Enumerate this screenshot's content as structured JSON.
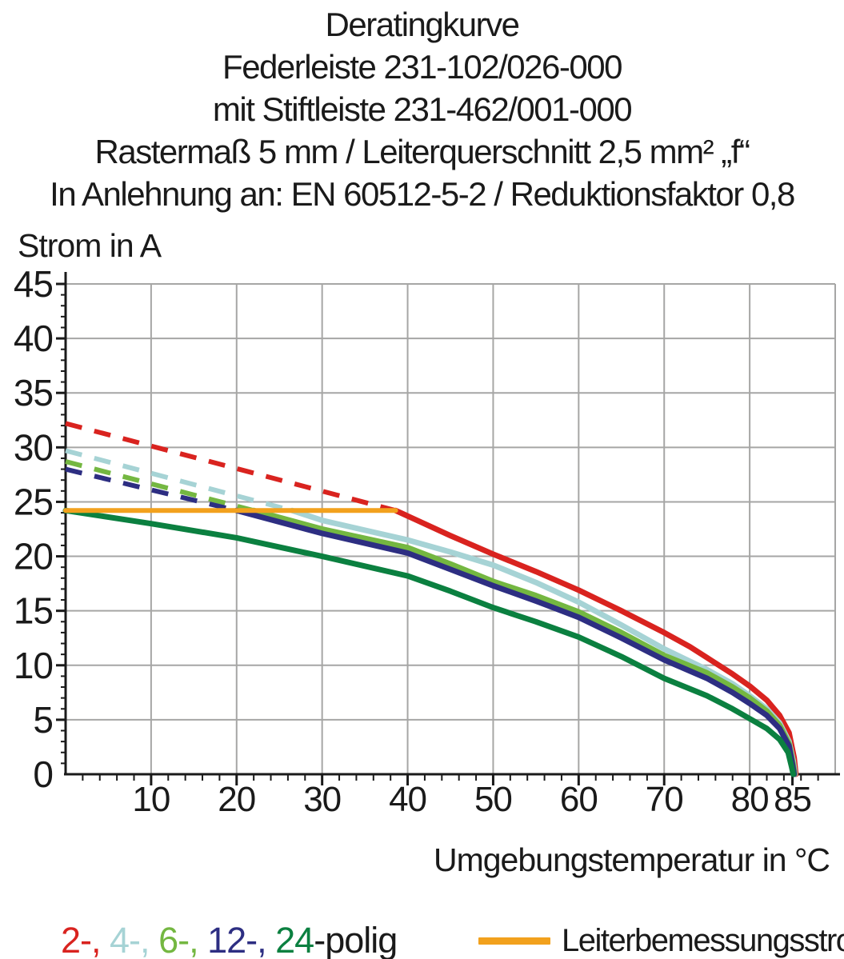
{
  "title_lines": [
    "Deratingkurve",
    "Federleiste 231-102/026-000",
    "mit Stiftleiste 231-462/001-000",
    "Rastermaß 5 mm / Leiterquerschnitt 2,5 mm² „f“",
    "In Anlehnung an: EN 60512-5-2 / Reduktionsfaktor 0,8"
  ],
  "y_axis_label": "Strom in A",
  "x_axis_label": "Umgebungstemperatur in °C",
  "legend": {
    "poles_parts": [
      {
        "text": "2-, ",
        "color": "#d9231f"
      },
      {
        "text": "4-, ",
        "color": "#a6d3d5"
      },
      {
        "text": "6-, ",
        "color": "#74b741"
      },
      {
        "text": "12-, ",
        "color": "#2d2e82"
      },
      {
        "text": "24",
        "color": "#0b8040"
      },
      {
        "text": "-polig",
        "color": "#1a1a1a"
      }
    ],
    "rated_current_label": "Leiterbemessungsstrom"
  },
  "colors": {
    "red_2pole": "#d9231f",
    "cyan_4pole": "#a6d3d5",
    "lightgreen_6pole": "#74b741",
    "navy_12pole": "#2d2e82",
    "darkgreen_24pole": "#0b8040",
    "rated_current": "#f2a11d",
    "grid": "#a6a6a5",
    "axis": "#1a1a1a"
  },
  "chart_data": {
    "type": "line",
    "title": "Deratingkurve Federleiste 231-102/026-000 mit Stiftleiste 231-462/001-000",
    "xlabel": "Umgebungstemperatur in °C",
    "ylabel": "Strom in A",
    "xlim": [
      0,
      90
    ],
    "ylim": [
      0,
      45
    ],
    "grid": true,
    "x_major_ticks": [
      10,
      20,
      30,
      40,
      50,
      60,
      70,
      80,
      85
    ],
    "x_tick_labels": [
      "10",
      "20",
      "30",
      "40",
      "50",
      "60",
      "70",
      "80",
      "85"
    ],
    "x_minor_step": 2,
    "y_major_ticks": [
      0,
      5,
      10,
      15,
      20,
      25,
      30,
      35,
      40,
      45
    ],
    "y_minor_step": 1,
    "x_gridlines": [
      10,
      20,
      30,
      40,
      50,
      60,
      70,
      80,
      90
    ],
    "y_gridlines": [
      5,
      10,
      15,
      20,
      25,
      30,
      35,
      40,
      45
    ],
    "legend_position": "bottom",
    "series": [
      {
        "name": "2-polig",
        "color": "#d9231f",
        "dashed_points": [
          [
            0,
            32.2
          ],
          [
            38.6,
            24.2
          ]
        ],
        "points": [
          [
            38.6,
            24.2
          ],
          [
            45,
            21.9
          ],
          [
            50,
            20.2
          ],
          [
            55,
            18.6
          ],
          [
            60,
            16.9
          ],
          [
            65,
            15.0
          ],
          [
            70,
            13.0
          ],
          [
            73,
            11.7
          ],
          [
            75,
            10.7
          ],
          [
            78,
            9.2
          ],
          [
            80,
            8.1
          ],
          [
            82,
            6.8
          ],
          [
            83.5,
            5.4
          ],
          [
            84.6,
            3.8
          ],
          [
            85.2,
            1.5
          ],
          [
            85.4,
            0
          ]
        ]
      },
      {
        "name": "4-polig",
        "color": "#a6d3d5",
        "dashed_points": [
          [
            0,
            29.7
          ],
          [
            26.5,
            24.2
          ]
        ],
        "points": [
          [
            26.5,
            24.2
          ],
          [
            30,
            23.3
          ],
          [
            35,
            22.4
          ],
          [
            40,
            21.5
          ],
          [
            45,
            20.4
          ],
          [
            50,
            19.2
          ],
          [
            55,
            17.6
          ],
          [
            60,
            15.8
          ],
          [
            65,
            13.7
          ],
          [
            70,
            11.5
          ],
          [
            75,
            9.6
          ],
          [
            78,
            8.3
          ],
          [
            80,
            7.2
          ],
          [
            82,
            6.0
          ],
          [
            83.5,
            4.7
          ],
          [
            84.6,
            3.0
          ],
          [
            85.1,
            1.2
          ],
          [
            85.3,
            0
          ]
        ]
      },
      {
        "name": "6-polig",
        "color": "#74b741",
        "dashed_points": [
          [
            0,
            28.7
          ],
          [
            22,
            24.2
          ]
        ],
        "points": [
          [
            22,
            24.2
          ],
          [
            30,
            22.5
          ],
          [
            40,
            20.8
          ],
          [
            45,
            19.3
          ],
          [
            50,
            17.7
          ],
          [
            55,
            16.4
          ],
          [
            60,
            14.9
          ],
          [
            65,
            13.0
          ],
          [
            70,
            10.9
          ],
          [
            75,
            9.3
          ],
          [
            78,
            8.0
          ],
          [
            80,
            7.0
          ],
          [
            82,
            5.8
          ],
          [
            83.5,
            4.5
          ],
          [
            84.6,
            2.8
          ],
          [
            85.05,
            1.0
          ],
          [
            85.25,
            0
          ]
        ]
      },
      {
        "name": "12-polig",
        "color": "#2d2e82",
        "dashed_points": [
          [
            0,
            28.0
          ],
          [
            20,
            24.2
          ]
        ],
        "points": [
          [
            20,
            24.2
          ],
          [
            30,
            22.1
          ],
          [
            40,
            20.3
          ],
          [
            45,
            18.8
          ],
          [
            50,
            17.3
          ],
          [
            55,
            15.9
          ],
          [
            60,
            14.4
          ],
          [
            65,
            12.5
          ],
          [
            70,
            10.5
          ],
          [
            75,
            8.8
          ],
          [
            78,
            7.5
          ],
          [
            80,
            6.5
          ],
          [
            82,
            5.4
          ],
          [
            83.5,
            4.2
          ],
          [
            84.6,
            2.6
          ],
          [
            85.0,
            0.9
          ],
          [
            85.2,
            0
          ]
        ]
      },
      {
        "name": "24-polig",
        "color": "#0b8040",
        "points": [
          [
            0,
            24.2
          ],
          [
            10,
            23.0
          ],
          [
            20,
            21.7
          ],
          [
            30,
            20.0
          ],
          [
            40,
            18.2
          ],
          [
            45,
            16.8
          ],
          [
            50,
            15.3
          ],
          [
            55,
            14.0
          ],
          [
            60,
            12.6
          ],
          [
            65,
            10.8
          ],
          [
            70,
            8.8
          ],
          [
            75,
            7.2
          ],
          [
            78,
            6.0
          ],
          [
            80,
            5.1
          ],
          [
            82,
            4.2
          ],
          [
            83.5,
            3.2
          ],
          [
            84.5,
            2.0
          ],
          [
            84.9,
            0.7
          ],
          [
            85.1,
            0
          ]
        ]
      },
      {
        "name": "Leiterbemessungsstrom",
        "color": "#f2a11d",
        "width": 6,
        "role": "rated-current",
        "points": [
          [
            0,
            24.2
          ],
          [
            38.6,
            24.2
          ]
        ]
      }
    ]
  }
}
